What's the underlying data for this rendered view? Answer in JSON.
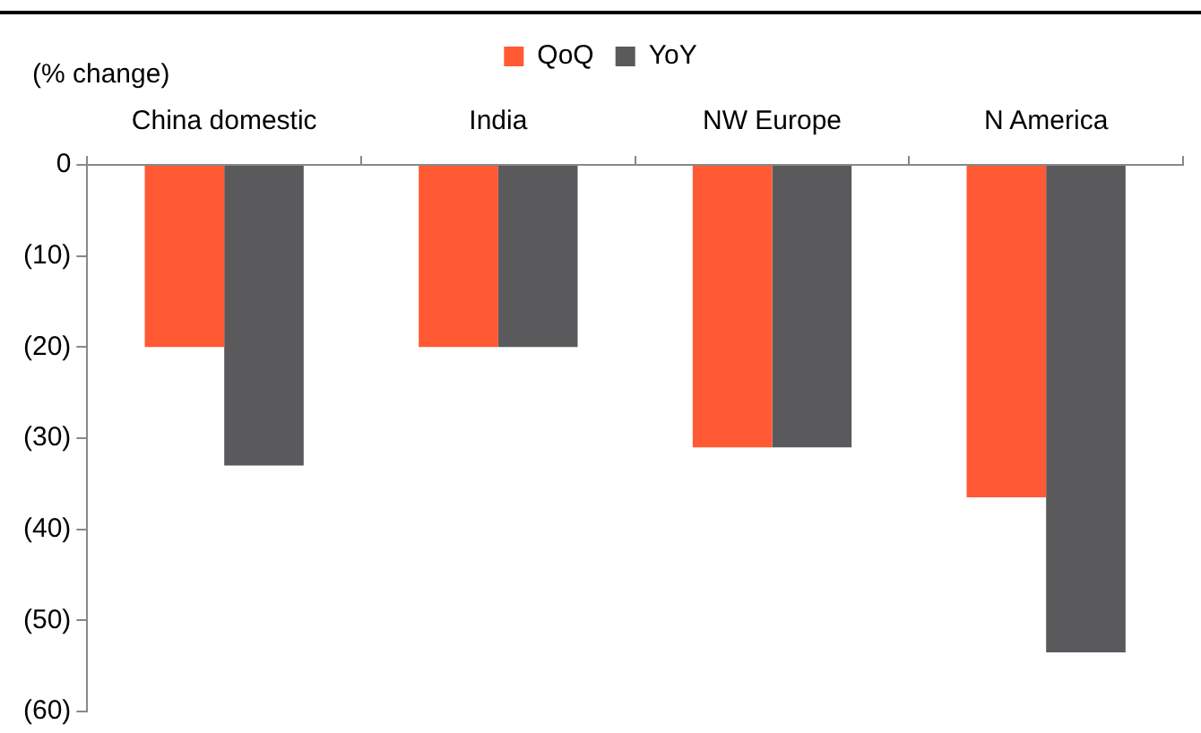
{
  "chart_data": {
    "type": "bar",
    "ylabel": "(% change)",
    "categories": [
      "China domestic",
      "India",
      "NW Europe",
      "N America"
    ],
    "series": [
      {
        "name": "QoQ",
        "color": "#ff5a33",
        "values": [
          -20,
          -20,
          -31,
          -36.5
        ]
      },
      {
        "name": "YoY",
        "color": "#5a5a5c",
        "values": [
          -33,
          -20,
          -31,
          -53.5
        ]
      }
    ],
    "ylim": [
      -60,
      0
    ],
    "yticks": [
      {
        "value": 0,
        "label": "0"
      },
      {
        "value": -10,
        "label": "(10)"
      },
      {
        "value": -20,
        "label": "(20)"
      },
      {
        "value": -30,
        "label": "(30)"
      },
      {
        "value": -40,
        "label": "(40)"
      },
      {
        "value": -50,
        "label": "(50)"
      },
      {
        "value": -60,
        "label": "(60)"
      }
    ],
    "grid": false,
    "legend": "top"
  }
}
